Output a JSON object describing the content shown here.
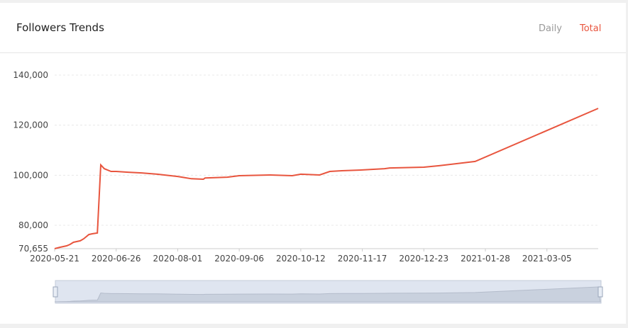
{
  "header": {
    "title": "Followers Trends",
    "tabs": [
      "Daily",
      "Total"
    ]
  },
  "chart_data": {
    "type": "line",
    "x": [
      "2020-05-21",
      "2020-05-24",
      "2020-05-28",
      "2020-05-30",
      "2020-06-01",
      "2020-06-05",
      "2020-06-07",
      "2020-06-10",
      "2020-06-12",
      "2020-06-15",
      "2020-06-17",
      "2020-06-19",
      "2020-06-23",
      "2020-06-26",
      "2020-07-03",
      "2020-07-11",
      "2020-07-20",
      "2020-08-01",
      "2020-08-09",
      "2020-08-16",
      "2020-08-17",
      "2020-08-30",
      "2020-09-06",
      "2020-09-24",
      "2020-10-07",
      "2020-10-12",
      "2020-10-23",
      "2020-10-29",
      "2020-11-05",
      "2020-11-17",
      "2020-11-30",
      "2020-12-03",
      "2020-12-23",
      "2021-01-01",
      "2021-01-22",
      "2021-04-04"
    ],
    "series": [
      {
        "name": "Total",
        "color": "#e8553e",
        "values": [
          70655,
          71200,
          71800,
          72350,
          73200,
          73800,
          74600,
          76300,
          76600,
          76900,
          104100,
          102600,
          101500,
          101500,
          101200,
          100900,
          100400,
          99500,
          98600,
          98400,
          98900,
          99200,
          99800,
          100100,
          99800,
          100400,
          100100,
          101500,
          101800,
          102100,
          102600,
          102900,
          103200,
          103800,
          105500,
          126700
        ]
      }
    ],
    "xlim": [
      "2020-05-21",
      "2021-04-04"
    ],
    "xticks": [
      "2020-05-21",
      "2020-06-26",
      "2020-08-01",
      "2020-09-06",
      "2020-10-12",
      "2020-11-17",
      "2020-12-23",
      "2021-01-28",
      "2021-03-05"
    ],
    "ylim": [
      70655,
      140000
    ],
    "yticks": [
      {
        "value": 70655,
        "label": "70,655"
      },
      {
        "value": 80000,
        "label": "80,000"
      },
      {
        "value": 100000,
        "label": "100,000"
      },
      {
        "value": 120000,
        "label": "120,000"
      },
      {
        "value": 140000,
        "label": "140,000"
      }
    ],
    "grid": true
  }
}
